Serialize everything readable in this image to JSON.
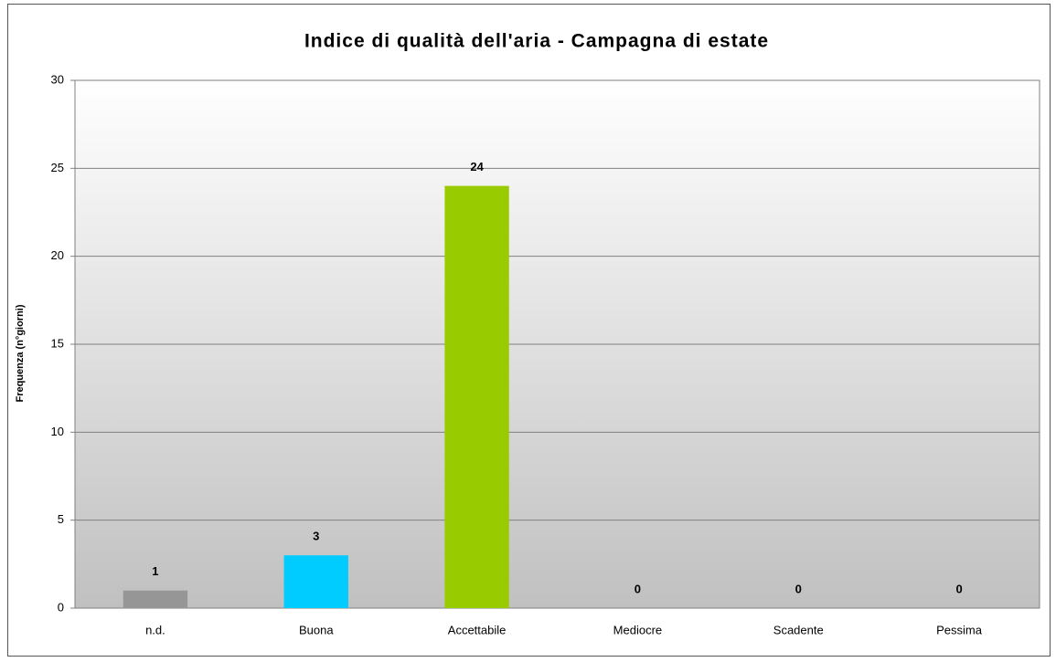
{
  "chart_data": {
    "type": "bar",
    "title": "Indice di qualità dell'aria - Campagna di estate",
    "y_label": "Frequenza (n°giorni)",
    "categories": [
      "n.d.",
      "Buona",
      "Accettabile",
      "Mediocre",
      "Scadente",
      "Pessima"
    ],
    "values": [
      1,
      3,
      24,
      0,
      0,
      0
    ],
    "colors": [
      "#969696",
      "#00ccff",
      "#99cc00",
      null,
      null,
      null
    ],
    "ylim": [
      0,
      30
    ],
    "yticks": [
      0,
      5,
      10,
      15,
      20,
      25,
      30
    ],
    "grid": true
  }
}
